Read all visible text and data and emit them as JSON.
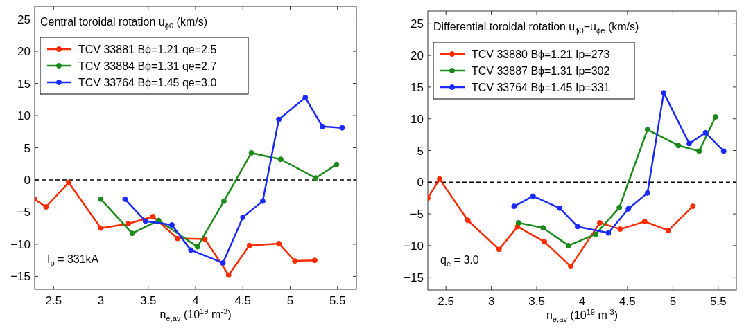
{
  "chart_data": [
    {
      "type": "line",
      "title": "Central toroidal rotation u$_{ϕ0}$ (km/s)",
      "xlabel": "n$_{e,av}$ (10$^{19}$ m$^{-3}$)",
      "annotations": [
        "I$_{p}$ = 331kA"
      ],
      "xlim": [
        2.3,
        5.7
      ],
      "ylim": [
        -17,
        27
      ],
      "xticks": [
        2.5,
        3,
        3.5,
        4,
        4.5,
        5,
        5.5
      ],
      "yticks": [
        -15,
        -10,
        -5,
        0,
        5,
        10,
        15,
        20,
        25
      ],
      "marker": "circle",
      "line_style": "solid",
      "legend": "top left",
      "grid": false,
      "ref_lines": [
        {
          "axis": "y",
          "value": 0,
          "label": null,
          "color": "#000000",
          "line_style": "dashed"
        }
      ],
      "series": [
        {
          "name": "TCV 33881 Bϕ=1.21 qe=2.5",
          "color": "#ff2a00",
          "x": [
            2.3,
            2.42,
            2.66,
            3.0,
            3.29,
            3.55,
            3.81,
            4.1,
            4.35,
            4.57,
            4.88,
            5.05,
            5.26
          ],
          "values": [
            -3.0,
            -4.2,
            -0.4,
            -7.5,
            -6.8,
            -5.7,
            -9.1,
            -9.2,
            -14.8,
            -10.2,
            -9.9,
            -12.6,
            -12.5
          ]
        },
        {
          "name": "TCV 33884 Bϕ=1.31 qe=2.7",
          "color": "#1a8a1a",
          "x": [
            3.0,
            3.33,
            3.61,
            4.02,
            4.3,
            4.59,
            4.9,
            5.27,
            5.49
          ],
          "values": [
            -3.0,
            -8.3,
            -6.3,
            -10.4,
            -3.3,
            4.2,
            3.2,
            0.3,
            2.4
          ]
        },
        {
          "name": "TCV 33764 Bϕ=1.45 qe=3.0",
          "color": "#1a2aff",
          "x": [
            3.255,
            3.47,
            3.75,
            3.95,
            4.29,
            4.5,
            4.71,
            4.88,
            5.16,
            5.34,
            5.55
          ],
          "values": [
            -3.0,
            -6.4,
            -7.0,
            -10.9,
            -12.9,
            -5.8,
            -3.3,
            9.4,
            12.8,
            8.3,
            8.1
          ]
        }
      ]
    },
    {
      "type": "line",
      "title": "Differential toroidal rotation u$_{ϕ0}$−u$_{ϕe}$ (km/s)",
      "xlabel": "n$_{e,av}$ (10$^{19}$ m$^{-3}$)",
      "annotations": [
        "q$_{e}$ = 3.0"
      ],
      "xlim": [
        2.3,
        5.7
      ],
      "ylim": [
        -17,
        27
      ],
      "xticks": [
        2.5,
        3,
        3.5,
        4,
        4.5,
        5,
        5.5
      ],
      "yticks": [
        -15,
        -10,
        -5,
        0,
        5,
        10,
        15,
        20,
        25
      ],
      "marker": "circle",
      "line_style": "solid",
      "legend": "top left",
      "grid": false,
      "ref_lines": [
        {
          "axis": "y",
          "value": 0,
          "label": null,
          "color": "#000000",
          "line_style": "dashed"
        }
      ],
      "series": [
        {
          "name": "TCV 33880 Bϕ=1.21 Ip=273",
          "color": "#ff2a00",
          "x": [
            2.3,
            2.43,
            2.74,
            3.085,
            3.29,
            3.585,
            3.875,
            4.195,
            4.42,
            4.69,
            4.95,
            5.22
          ],
          "values": [
            -2.5,
            0.5,
            -6.0,
            -10.6,
            -7.0,
            -9.4,
            -13.3,
            -6.4,
            -7.4,
            -6.2,
            -7.6,
            -3.8
          ]
        },
        {
          "name": "TCV 33887 Bϕ=1.31 Ip=302",
          "color": "#1a8a1a",
          "x": [
            3.3,
            3.57,
            3.85,
            4.15,
            4.41,
            4.72,
            5.06,
            5.29,
            5.47
          ],
          "values": [
            -6.4,
            -7.2,
            -10.0,
            -8.2,
            -4.0,
            8.3,
            5.8,
            4.9,
            10.3
          ]
        },
        {
          "name": "TCV 33764 Bϕ=1.45 Ip=331",
          "color": "#1a2aff",
          "x": [
            3.25,
            3.46,
            3.755,
            3.95,
            4.29,
            4.51,
            4.72,
            4.9,
            5.18,
            5.36,
            5.56
          ],
          "values": [
            -3.8,
            -2.2,
            -4.1,
            -7.0,
            -8.0,
            -4.2,
            -1.7,
            14.1,
            6.1,
            7.8,
            4.9
          ]
        }
      ]
    }
  ]
}
